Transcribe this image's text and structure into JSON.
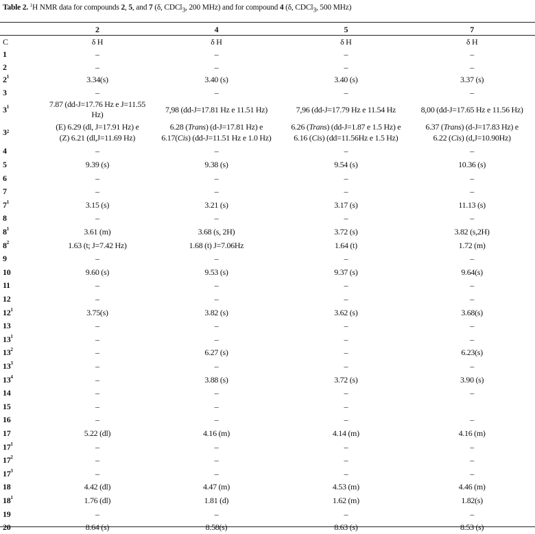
{
  "caption": {
    "label": "Table 2.",
    "parts": [
      {
        "t": " "
      },
      {
        "t": "1",
        "sup": true
      },
      {
        "t": "H NMR data for compounds "
      },
      {
        "t": "2",
        "b": true
      },
      {
        "t": ", "
      },
      {
        "t": "5",
        "b": true
      },
      {
        "t": ", and "
      },
      {
        "t": "7",
        "b": true
      },
      {
        "t": " (δ, CDCl"
      },
      {
        "t": "3",
        "sub": true
      },
      {
        "t": ", 200 MHz) and for compound "
      },
      {
        "t": "4",
        "b": true
      },
      {
        "t": " (δ, CDCl"
      },
      {
        "t": "3",
        "sub": true
      },
      {
        "t": ", 500 MHz)"
      }
    ]
  },
  "columns": [
    "2",
    "4",
    "5",
    "7"
  ],
  "subheader": {
    "label": "C",
    "values": [
      "δ H",
      "δ H",
      "δ H",
      "δ H"
    ]
  },
  "rows": [
    {
      "c": "1",
      "v": [
        "–",
        "–",
        "–",
        "–"
      ]
    },
    {
      "c": "2",
      "v": [
        "–",
        "–",
        "–",
        "–"
      ]
    },
    {
      "c": "2",
      "s": "1",
      "v": [
        "3.34(s)",
        "3.40 (s)",
        "3.40 (s)",
        "3.37 (s)"
      ]
    },
    {
      "c": "3",
      "v": [
        "–",
        "–",
        "–",
        "–"
      ]
    },
    {
      "c": "3",
      "s": "1",
      "v": [
        "7.87 (dd-J=17.76 Hz e J=11.55 Hz)",
        "7,98 (dd-J=17.81 Hz e 11.51 Hz)",
        "7,96 (dd-J=17.79 Hz e 11.54 Hz",
        "8,00 (dd-J=17.65 Hz e 11.56 Hz)"
      ]
    },
    {
      "c": "3",
      "s": "2",
      "v": [
        [
          [
            {
              "t": "(E) 6.29 (dl, J=17.91 Hz) e"
            }
          ],
          [
            {
              "t": "(Z) 6.21 (dl,J=11.69 Hz)"
            }
          ]
        ],
        [
          [
            {
              "t": "6.28 ("
            },
            {
              "t": "Trans",
              "i": true
            },
            {
              "t": ") (d-J=17.81 Hz) e"
            }
          ],
          [
            {
              "t": "6.17("
            },
            {
              "t": "Cis",
              "i": true
            },
            {
              "t": ") (dd-J=11.51 Hz e 1.0 Hz)"
            }
          ]
        ],
        [
          [
            {
              "t": "6.26 ("
            },
            {
              "t": "Trans",
              "i": true
            },
            {
              "t": ") (dd-J=1.87 e 1.5 Hz) e"
            }
          ],
          [
            {
              "t": "6.16 ("
            },
            {
              "t": "Cis",
              "i": true
            },
            {
              "t": ") (dd=11.56Hz e 1.5 Hz)"
            }
          ]
        ],
        [
          [
            {
              "t": "6.37 ("
            },
            {
              "t": "Trans",
              "i": true
            },
            {
              "t": ") (d-J=17.83 Hz) e"
            }
          ],
          [
            {
              "t": "6.22 ("
            },
            {
              "t": "Cis",
              "i": true
            },
            {
              "t": ") (d,J=10.90Hz)"
            }
          ]
        ]
      ]
    },
    {
      "c": "4",
      "v": [
        "–",
        "–",
        "–",
        "–"
      ]
    },
    {
      "c": "5",
      "v": [
        "9.39 (s)",
        "9.38 (s)",
        "9.54 (s)",
        "10.36 (s)"
      ]
    },
    {
      "c": "6",
      "v": [
        "–",
        "–",
        "–",
        "–"
      ]
    },
    {
      "c": "7",
      "v": [
        "–",
        "–",
        "–",
        "–"
      ]
    },
    {
      "c": "7",
      "s": "1",
      "v": [
        "3.15 (s)",
        "3.21 (s)",
        "3.17 (s)",
        "11.13 (s)"
      ]
    },
    {
      "c": "8",
      "v": [
        "–",
        "–",
        "–",
        "–"
      ]
    },
    {
      "c": "8",
      "s": "1",
      "v": [
        "3.61 (m)",
        "3.68 (s, 2H)",
        "3.72 (s)",
        "3.82 (s,2H)"
      ]
    },
    {
      "c": "8",
      "s": "2",
      "v": [
        "1.63 (t; J=7.42 Hz)",
        "1.68 (t) J=7.06Hz",
        "1.64 (t)",
        "1.72 (m)"
      ]
    },
    {
      "c": "9",
      "v": [
        "–",
        "–",
        "–",
        "–"
      ]
    },
    {
      "c": "10",
      "v": [
        "9.60 (s)",
        "9.53 (s)",
        "9.37 (s)",
        "9.64(s)"
      ]
    },
    {
      "c": "11",
      "v": [
        "–",
        "–",
        "–",
        "–"
      ]
    },
    {
      "c": "12",
      "v": [
        "–",
        "–",
        "–",
        "–"
      ]
    },
    {
      "c": "12",
      "s": "1",
      "v": [
        "3.75(s)",
        "3.82 (s)",
        "3.62 (s)",
        "3.68(s)"
      ]
    },
    {
      "c": "13",
      "v": [
        "–",
        "–",
        "–",
        "–"
      ]
    },
    {
      "c": "13",
      "s": "1",
      "v": [
        "–",
        "–",
        "–",
        "–"
      ]
    },
    {
      "c": "13",
      "s": "2",
      "v": [
        "–",
        "6.27 (s)",
        "–",
        "6.23(s)"
      ]
    },
    {
      "c": "13",
      "s": "3",
      "v": [
        "–",
        "–",
        "–",
        "–"
      ]
    },
    {
      "c": "13",
      "s": "4",
      "v": [
        "–",
        "3.88 (s)",
        "3.72 (s)",
        "3.90 (s)"
      ]
    },
    {
      "c": "14",
      "v": [
        "–",
        "–",
        "–",
        "–"
      ]
    },
    {
      "c": "15",
      "v": [
        "–",
        "–",
        "–",
        ""
      ]
    },
    {
      "c": "16",
      "v": [
        "–",
        "–",
        "–",
        "–"
      ]
    },
    {
      "c": "17",
      "v": [
        "5.22 (dl)",
        "4.16 (m)",
        "4.14 (m)",
        "4.16 (m)"
      ]
    },
    {
      "c": "17",
      "s": "1",
      "v": [
        "–",
        "–",
        "–",
        "–"
      ]
    },
    {
      "c": "17",
      "s": "2",
      "v": [
        "–",
        "–",
        "–",
        "–"
      ]
    },
    {
      "c": "17",
      "s": "3",
      "v": [
        "–",
        "–",
        "–",
        "–"
      ]
    },
    {
      "c": "18",
      "v": [
        "4.42 (dl)",
        "4.47 (m)",
        "4.53 (m)",
        "4.46 (m)"
      ]
    },
    {
      "c": "18",
      "s": "1",
      "v": [
        "1.76 (dl)",
        "1.81 (d)",
        "1.62 (m)",
        "1.82(s)"
      ]
    },
    {
      "c": "19",
      "v": [
        "–",
        "–",
        "–",
        "–"
      ]
    },
    {
      "c": "20",
      "v": [
        "8.64 (s)",
        "8.58(s)",
        "8.63 (s)",
        "8.53 (s)"
      ]
    }
  ]
}
